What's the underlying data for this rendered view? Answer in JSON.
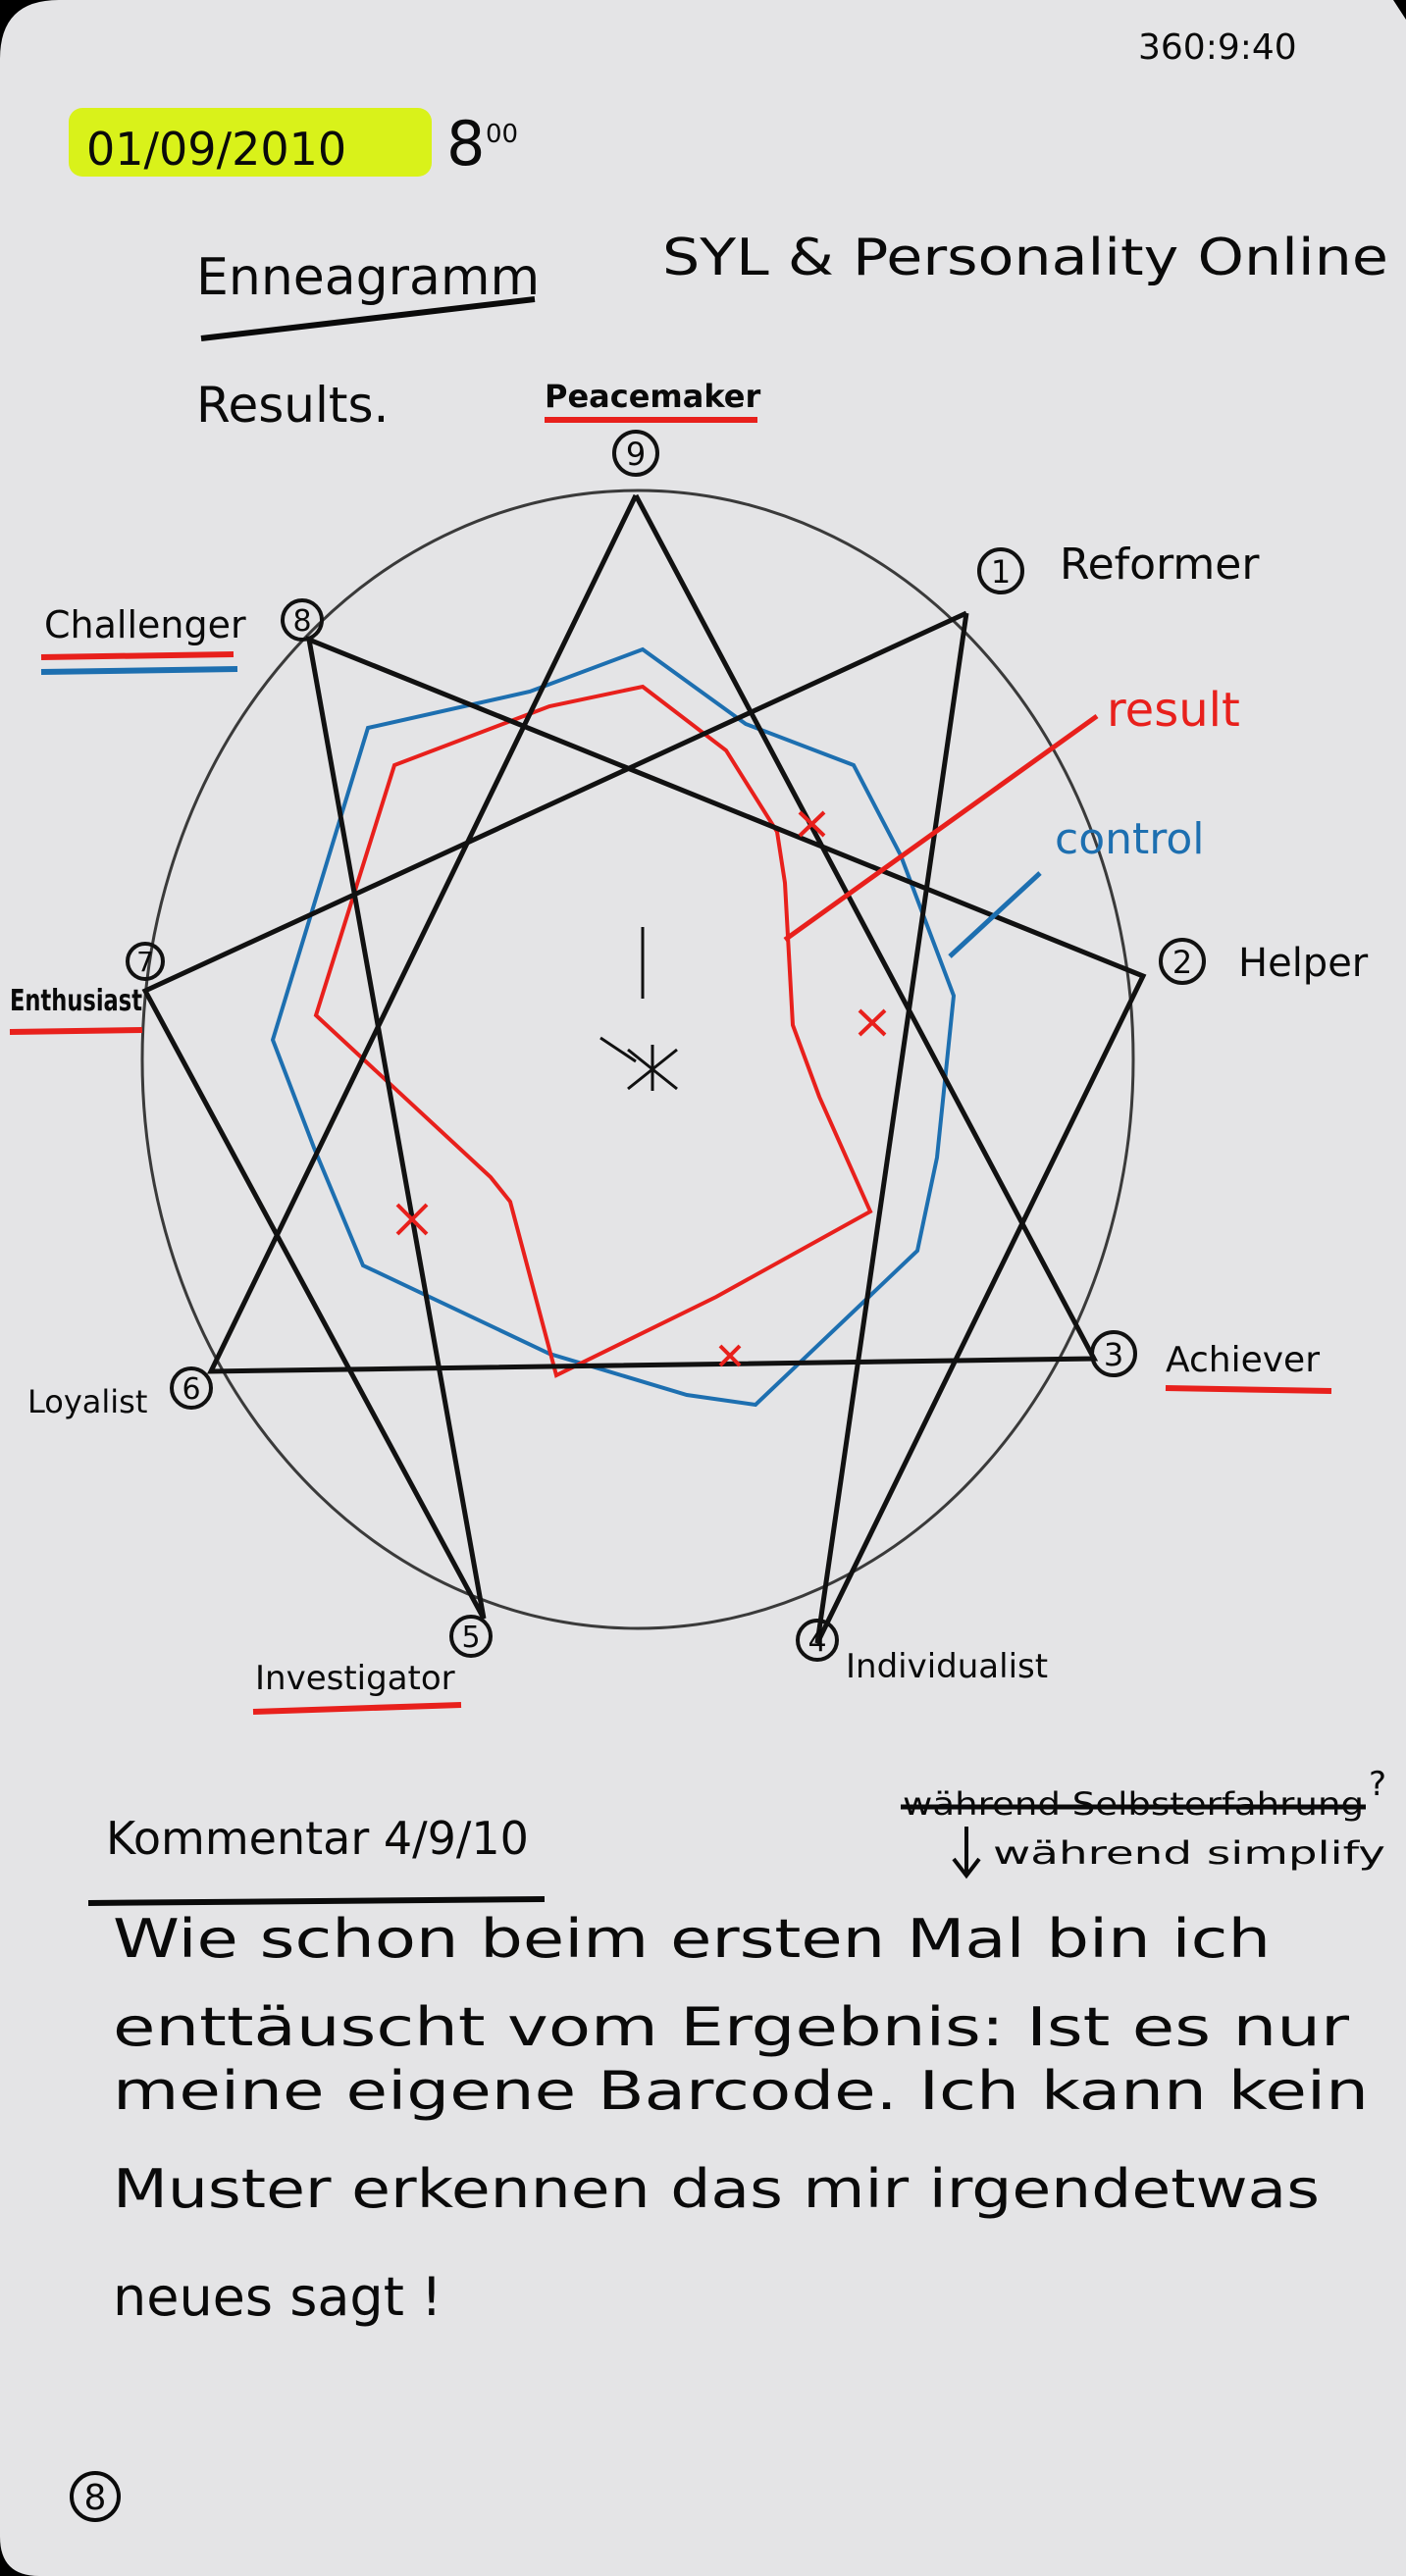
{
  "page": {
    "corner_code": "360:9:40",
    "date": "01/09/2010",
    "time": "8",
    "title_left": "Enneagramm",
    "title_right": "SYL & Personality Online",
    "subtitle": "Results.",
    "page_number": "8"
  },
  "enneagram": {
    "types": [
      {
        "number": "9",
        "name": "Peacemaker"
      },
      {
        "number": "1",
        "name": "Reformer"
      },
      {
        "number": "2",
        "name": "Helper"
      },
      {
        "number": "3",
        "name": "Achiever"
      },
      {
        "number": "4",
        "name": "Individualist"
      },
      {
        "number": "5",
        "name": "Investigator"
      },
      {
        "number": "6",
        "name": "Loyalist"
      },
      {
        "number": "7",
        "name": "Enthusiast"
      },
      {
        "number": "8",
        "name": "Challenger"
      }
    ],
    "legend_result": "result",
    "legend_control": "control",
    "colors": {
      "ink": "#0a0a0a",
      "result": "#e8201c",
      "control": "#1d6fb0",
      "highlight": "#d9f21a",
      "paper": "#e4e4e6"
    }
  },
  "comment": {
    "heading": "Kommentar 4/9/10",
    "annotation_struck": "während Selbsterfahrung",
    "annotation_replacement": "während simplify",
    "lines": [
      "Wie schon beim ersten Mal bin ich",
      "enttäuscht vom Ergebnis: Ist es nur",
      "meine eigene Barcode. Ich kann kein",
      "Muster erkennen das mir irgendetwas",
      "neues sagt !"
    ]
  }
}
